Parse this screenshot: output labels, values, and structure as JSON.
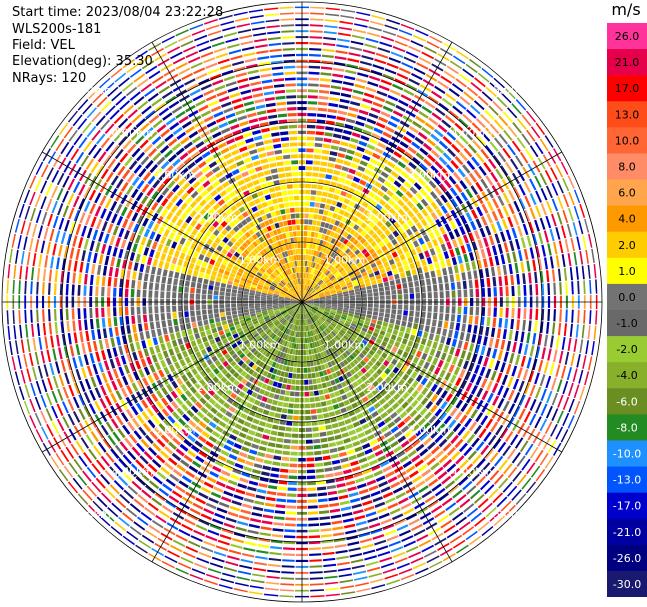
{
  "info": {
    "start_time": "Start time: 2023/08/04 23:22:28",
    "station": "WLS200s-181",
    "field": "Field: VEL",
    "elevation": "Elevation(deg): 35.30",
    "nrays": "NRays: 120"
  },
  "colorbar": {
    "unit": "m/s",
    "ticks": [
      "26.0",
      "21.0",
      "17.0",
      "13.0",
      "10.0",
      "8.0",
      "6.0",
      "4.0",
      "2.0",
      "1.0",
      "0.0",
      "-1.0",
      "-2.0",
      "-4.0",
      "-6.0",
      "-8.0",
      "-10.0",
      "-13.0",
      "-17.0",
      "-21.0",
      "-26.0",
      "-30.0"
    ],
    "colors": [
      "#ff3399",
      "#e6004c",
      "#ff0000",
      "#ff4d1a",
      "#ff6633",
      "#ff8c66",
      "#ffa64d",
      "#ff9900",
      "#ffcc00",
      "#ffff00",
      "#737373",
      "#696969",
      "#99cc33",
      "#88b02a",
      "#6b8e23",
      "#228b22",
      "#1e90ff",
      "#0055ff",
      "#0000cd",
      "#0000a0",
      "#000080",
      "#191970"
    ]
  },
  "range_labels": [
    "1.00km",
    "2.00km",
    "3.00km",
    "4.00km",
    "5.00km"
  ],
  "chart_data": {
    "type": "heatmap",
    "title": "",
    "field": "VEL",
    "units": "m/s",
    "nrays": 120,
    "range_rings_km": [
      1.0,
      2.0,
      3.0,
      4.0,
      5.0
    ],
    "max_range_km": 5.0,
    "color_scale": {
      "bounds": [
        -30,
        -26,
        -21,
        -17,
        -13,
        -10,
        -8,
        -6,
        -4,
        -2,
        -1,
        0,
        1,
        2,
        4,
        6,
        8,
        10,
        13,
        17,
        21,
        26
      ],
      "min": -30,
      "max": 26
    },
    "pattern_summary": {
      "inner_north_half": "yellow, 1 to 6 m/s (approaching-away positive)",
      "inner_south_half": "green, -1 to -8 m/s",
      "near_east_west": "grey, about 0 m/s",
      "outer_region_km": [
        2.7,
        5.0
      ],
      "outer_region": "noise, all colors"
    }
  }
}
